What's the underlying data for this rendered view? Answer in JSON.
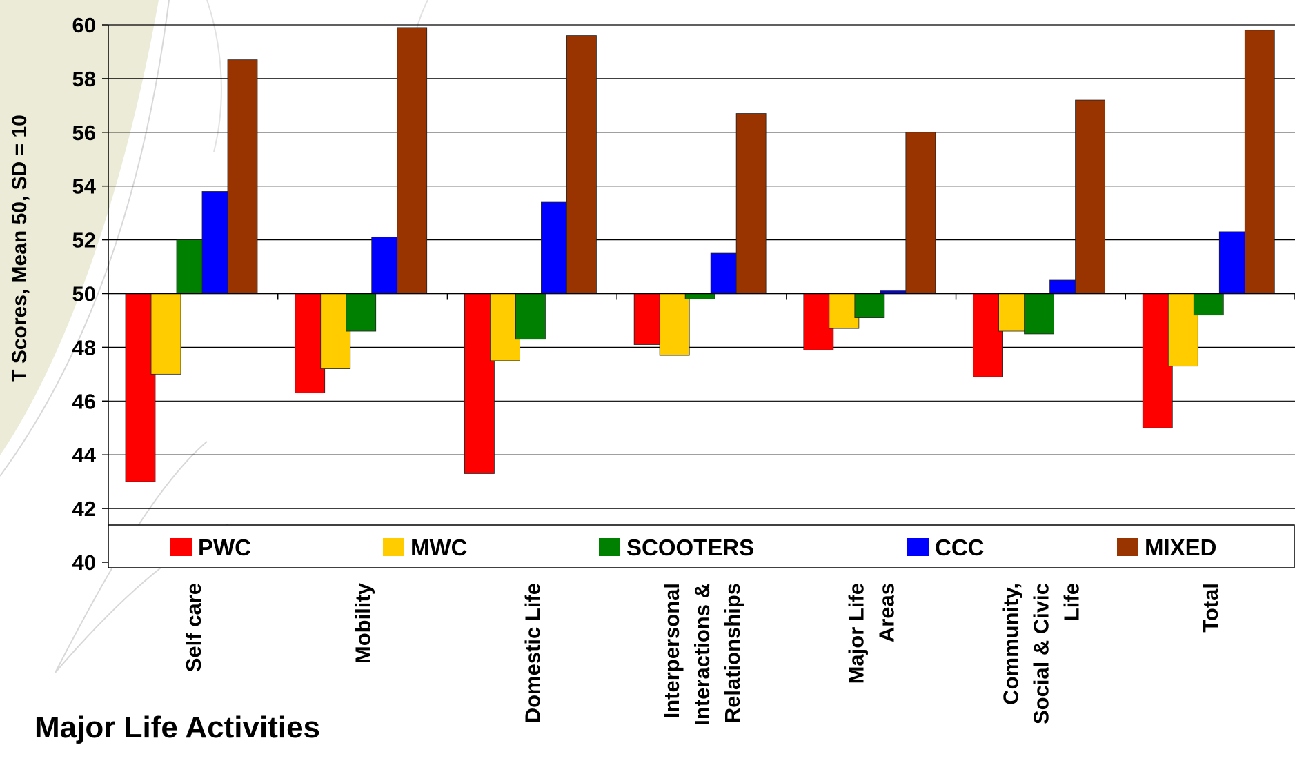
{
  "chart_data": {
    "type": "bar",
    "categories": [
      [
        "Self care"
      ],
      [
        "Mobility"
      ],
      [
        "Domestic Life"
      ],
      [
        "Interpersonal",
        "Interactions &",
        "Relationships"
      ],
      [
        "Major Life",
        "Areas"
      ],
      [
        "Community,",
        "Social & Civic",
        "Life"
      ],
      [
        "Total"
      ]
    ],
    "series": [
      {
        "name": "PWC",
        "color": "#ff0000",
        "values": [
          43.0,
          46.3,
          43.3,
          48.1,
          47.9,
          46.9,
          45.0
        ]
      },
      {
        "name": "MWC",
        "color": "#ffcc00",
        "values": [
          47.0,
          47.2,
          47.5,
          47.7,
          48.7,
          48.6,
          47.3
        ]
      },
      {
        "name": "SCOOTERS",
        "color": "#008000",
        "values": [
          52.0,
          48.6,
          48.3,
          49.8,
          49.1,
          48.5,
          49.2
        ]
      },
      {
        "name": "CCC",
        "color": "#0000ff",
        "values": [
          53.8,
          52.1,
          53.4,
          51.5,
          50.1,
          50.5,
          52.3
        ]
      },
      {
        "name": "MIXED",
        "color": "#993300",
        "values": [
          58.7,
          59.9,
          59.6,
          56.7,
          56.0,
          57.2,
          59.8
        ]
      }
    ],
    "baseline": 50,
    "ylim": [
      40,
      60
    ],
    "yticks": [
      40,
      42,
      44,
      46,
      48,
      50,
      52,
      54,
      56,
      58,
      60
    ],
    "ylabel": "T Scores, Mean 50, SD = 10",
    "xlabel": "Major Life Activities",
    "grid": true,
    "legend_position": "bottom"
  }
}
